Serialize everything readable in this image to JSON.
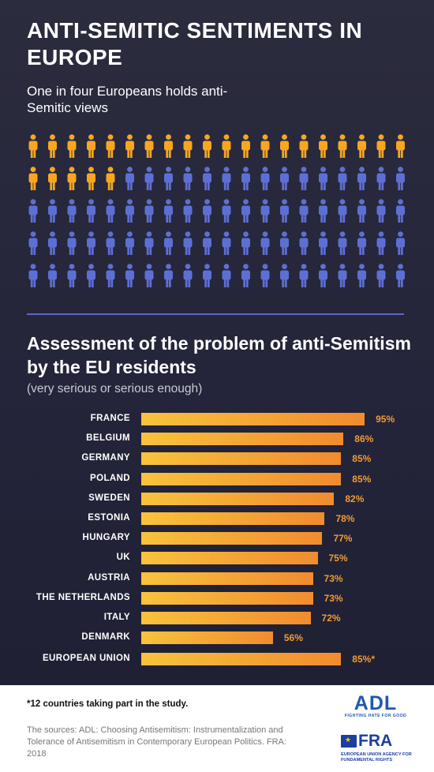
{
  "header": {
    "title": "ANTI-SEMITIC SENTIMENTS IN EUROPE",
    "subtitle": "One in four Europeans holds anti-Semitic views"
  },
  "pictogram": {
    "total_figures": 100,
    "highlighted_figures": 25,
    "highlight_color": "#f7a623",
    "base_color": "#5e6fd4",
    "icon": "person-icon"
  },
  "section": {
    "title": "Assessment of the problem of anti-Semitism by the EU residents",
    "subtitle": "(very serious or serious enough)"
  },
  "chart_data": {
    "type": "bar",
    "orientation": "horizontal",
    "categories": [
      "FRANCE",
      "BELGIUM",
      "GERMANY",
      "POLAND",
      "SWEDEN",
      "ESTONIA",
      "HUNGARY",
      "UK",
      "AUSTRIA",
      "THE NETHERLANDS",
      "ITALY",
      "DENMARK",
      "EUROPEAN UNION"
    ],
    "values": [
      95,
      86,
      85,
      85,
      82,
      78,
      77,
      75,
      73,
      73,
      72,
      56,
      85
    ],
    "value_labels": [
      "95%",
      "86%",
      "85%",
      "85%",
      "82%",
      "78%",
      "77%",
      "75%",
      "73%",
      "73%",
      "72%",
      "56%",
      "85%*"
    ],
    "xlim": [
      0,
      100
    ],
    "bar_color_start": "#f8c33c",
    "bar_color_end": "#f18b2f",
    "grid": false
  },
  "footer": {
    "footnote": "*12 countries taking part in the study.",
    "sources": "The sources: ADL: Choosing Antisemitism: Instrumentalization and Tolerance of Antisemitism in Contemporary European Politics. FRA: 2018"
  },
  "logos": {
    "adl": {
      "wordmark": "ADL",
      "tagline": "FIGHTING HATE FOR GOOD"
    },
    "fra": {
      "wordmark": "FRA",
      "tagline": "EUROPEAN UNION AGENCY FOR FUNDAMENTAL RIGHTS"
    }
  }
}
